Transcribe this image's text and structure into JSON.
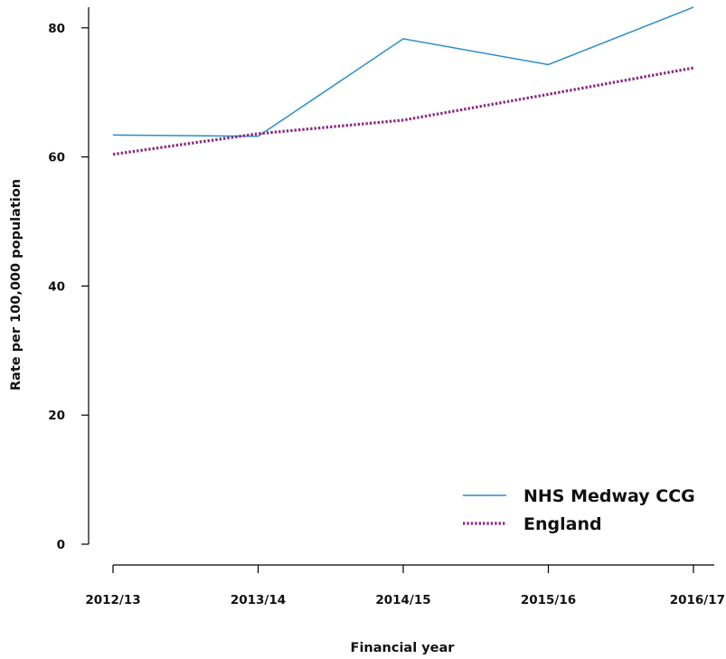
{
  "chart_data": {
    "type": "line",
    "categories": [
      "2012/13",
      "2013/14",
      "2014/15",
      "2015/16",
      "2016/17"
    ],
    "series": [
      {
        "name": "NHS Medway CCG",
        "values": [
          63.4,
          63.2,
          78.3,
          74.3,
          83.2
        ],
        "color": "#2a8fc8",
        "style": "solid"
      },
      {
        "name": "England",
        "values": [
          60.4,
          63.6,
          65.7,
          69.7,
          73.8
        ],
        "color": "#8b2a86",
        "style": "dotted"
      }
    ],
    "xlabel": "Financial year",
    "ylabel": "Rate per 100,000 population",
    "ylim": [
      0,
      84
    ],
    "yticks": [
      0,
      20,
      40,
      60,
      80
    ],
    "grid": false,
    "legend_position": "bottom-right"
  }
}
